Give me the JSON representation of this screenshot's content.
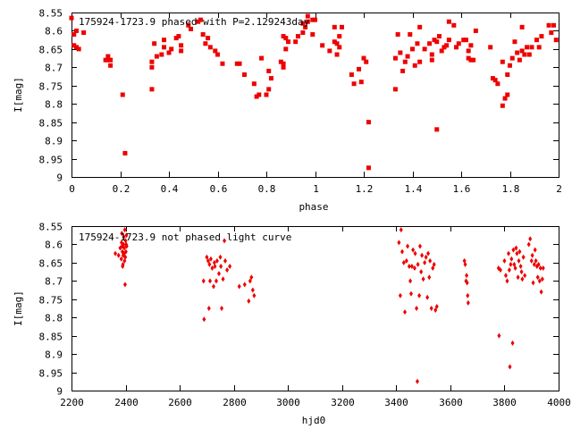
{
  "chart_data": [
    {
      "type": "scatter",
      "title": "175924-1723.9 phased with P=2.129243day",
      "xlabel": "phase",
      "ylabel": "I[mag]",
      "xlim": [
        0,
        2
      ],
      "ylim": [
        8.55,
        9
      ],
      "y_inverted": true,
      "marker_color": "#ee0000",
      "x_ticks": [
        "0",
        "0.2",
        "0.4",
        "0.6",
        "0.8",
        "1",
        "1.2",
        "1.4",
        "1.6",
        "1.8",
        "2"
      ],
      "y_ticks": [
        "8.55",
        "8.6",
        "8.65",
        "8.7",
        "8.75",
        "8.8",
        "8.85",
        "8.9",
        "8.95",
        "9"
      ],
      "points": [
        [
          0.0,
          8.565
        ],
        [
          0.01,
          8.64
        ],
        [
          0.01,
          8.61
        ],
        [
          0.02,
          8.6
        ],
        [
          0.02,
          8.645
        ],
        [
          0.03,
          8.65
        ],
        [
          0.05,
          8.605
        ],
        [
          0.14,
          8.68
        ],
        [
          0.15,
          8.67
        ],
        [
          0.15,
          8.68
        ],
        [
          0.16,
          8.695
        ],
        [
          0.16,
          8.68
        ],
        [
          0.21,
          8.775
        ],
        [
          0.22,
          8.935
        ],
        [
          0.33,
          8.7
        ],
        [
          0.33,
          8.685
        ],
        [
          0.33,
          8.76
        ],
        [
          0.34,
          8.635
        ],
        [
          0.35,
          8.67
        ],
        [
          0.37,
          8.665
        ],
        [
          0.38,
          8.625
        ],
        [
          0.38,
          8.645
        ],
        [
          0.4,
          8.66
        ],
        [
          0.41,
          8.65
        ],
        [
          0.43,
          8.62
        ],
        [
          0.44,
          8.615
        ],
        [
          0.45,
          8.64
        ],
        [
          0.45,
          8.655
        ],
        [
          0.48,
          8.585
        ],
        [
          0.49,
          8.595
        ],
        [
          0.52,
          8.575
        ],
        [
          0.53,
          8.57
        ],
        [
          0.54,
          8.61
        ],
        [
          0.55,
          8.635
        ],
        [
          0.56,
          8.62
        ],
        [
          0.57,
          8.645
        ],
        [
          0.59,
          8.655
        ],
        [
          0.6,
          8.665
        ],
        [
          0.62,
          8.69
        ],
        [
          0.68,
          8.69
        ],
        [
          0.69,
          8.69
        ],
        [
          0.71,
          8.72
        ],
        [
          0.75,
          8.745
        ],
        [
          0.76,
          8.78
        ],
        [
          0.77,
          8.775
        ],
        [
          0.78,
          8.675
        ],
        [
          0.8,
          8.775
        ],
        [
          0.81,
          8.76
        ],
        [
          0.81,
          8.71
        ],
        [
          0.82,
          8.73
        ],
        [
          0.86,
          8.685
        ],
        [
          0.87,
          8.69
        ],
        [
          0.87,
          8.7
        ],
        [
          0.87,
          8.615
        ],
        [
          0.88,
          8.62
        ],
        [
          0.88,
          8.65
        ],
        [
          0.89,
          8.63
        ],
        [
          0.92,
          8.63
        ],
        [
          0.93,
          8.615
        ],
        [
          0.95,
          8.605
        ],
        [
          0.95,
          8.58
        ],
        [
          0.96,
          8.59
        ],
        [
          0.97,
          8.56
        ],
        [
          0.97,
          8.575
        ],
        [
          0.99,
          8.61
        ],
        [
          0.99,
          8.57
        ],
        [
          1.0,
          8.57
        ],
        [
          1.03,
          8.64
        ],
        [
          1.06,
          8.655
        ],
        [
          1.08,
          8.63
        ],
        [
          1.08,
          8.59
        ],
        [
          1.09,
          8.635
        ],
        [
          1.09,
          8.665
        ],
        [
          1.1,
          8.645
        ],
        [
          1.1,
          8.615
        ],
        [
          1.11,
          8.59
        ],
        [
          1.15,
          8.72
        ],
        [
          1.16,
          8.745
        ],
        [
          1.18,
          8.705
        ],
        [
          1.19,
          8.74
        ],
        [
          1.2,
          8.675
        ],
        [
          1.21,
          8.685
        ],
        [
          1.22,
          8.85
        ],
        [
          1.22,
          8.975
        ],
        [
          1.33,
          8.76
        ],
        [
          1.33,
          8.675
        ],
        [
          1.34,
          8.61
        ],
        [
          1.35,
          8.66
        ],
        [
          1.36,
          8.71
        ],
        [
          1.37,
          8.685
        ],
        [
          1.38,
          8.67
        ],
        [
          1.39,
          8.61
        ],
        [
          1.4,
          8.65
        ],
        [
          1.41,
          8.695
        ],
        [
          1.42,
          8.635
        ],
        [
          1.43,
          8.685
        ],
        [
          1.43,
          8.59
        ],
        [
          1.45,
          8.65
        ],
        [
          1.47,
          8.635
        ],
        [
          1.48,
          8.665
        ],
        [
          1.48,
          8.68
        ],
        [
          1.49,
          8.625
        ],
        [
          1.5,
          8.63
        ],
        [
          1.5,
          8.87
        ],
        [
          1.51,
          8.615
        ],
        [
          1.52,
          8.655
        ],
        [
          1.53,
          8.645
        ],
        [
          1.54,
          8.64
        ],
        [
          1.55,
          8.625
        ],
        [
          1.55,
          8.575
        ],
        [
          1.57,
          8.585
        ],
        [
          1.58,
          8.645
        ],
        [
          1.59,
          8.635
        ],
        [
          1.61,
          8.625
        ],
        [
          1.62,
          8.625
        ],
        [
          1.63,
          8.655
        ],
        [
          1.63,
          8.675
        ],
        [
          1.64,
          8.68
        ],
        [
          1.64,
          8.64
        ],
        [
          1.65,
          8.68
        ],
        [
          1.66,
          8.6
        ],
        [
          1.72,
          8.645
        ],
        [
          1.73,
          8.73
        ],
        [
          1.74,
          8.735
        ],
        [
          1.75,
          8.745
        ],
        [
          1.77,
          8.685
        ],
        [
          1.77,
          8.805
        ],
        [
          1.78,
          8.785
        ],
        [
          1.79,
          8.775
        ],
        [
          1.79,
          8.72
        ],
        [
          1.8,
          8.695
        ],
        [
          1.81,
          8.675
        ],
        [
          1.82,
          8.63
        ],
        [
          1.83,
          8.66
        ],
        [
          1.84,
          8.68
        ],
        [
          1.85,
          8.655
        ],
        [
          1.85,
          8.59
        ],
        [
          1.86,
          8.665
        ],
        [
          1.87,
          8.645
        ],
        [
          1.88,
          8.665
        ],
        [
          1.89,
          8.645
        ],
        [
          1.91,
          8.625
        ],
        [
          1.92,
          8.645
        ],
        [
          1.93,
          8.615
        ],
        [
          1.96,
          8.585
        ],
        [
          1.97,
          8.605
        ],
        [
          1.98,
          8.585
        ],
        [
          1.99,
          8.625
        ]
      ]
    },
    {
      "type": "scatter",
      "title": "175924-1723.9 not phased light curve",
      "xlabel": "hjd0",
      "ylabel": "I[mag]",
      "xlim": [
        2200,
        4000
      ],
      "ylim": [
        8.55,
        9
      ],
      "y_inverted": true,
      "marker_color": "#ee0000",
      "x_ticks": [
        "2200",
        "2400",
        "2600",
        "2800",
        "3000",
        "3200",
        "3400",
        "3600",
        "3800",
        "4000"
      ],
      "y_ticks": [
        "8.55",
        "8.6",
        "8.65",
        "8.7",
        "8.75",
        "8.8",
        "8.85",
        "8.9",
        "8.95",
        "9"
      ],
      "points": [
        [
          2362,
          8.625
        ],
        [
          2374,
          8.63
        ],
        [
          2380,
          8.61
        ],
        [
          2384,
          8.64
        ],
        [
          2385,
          8.595
        ],
        [
          2386,
          8.57
        ],
        [
          2387,
          8.605
        ],
        [
          2388,
          8.62
        ],
        [
          2389,
          8.66
        ],
        [
          2390,
          8.655
        ],
        [
          2391,
          8.63
        ],
        [
          2392,
          8.6
        ],
        [
          2393,
          8.58
        ],
        [
          2394,
          8.625
        ],
        [
          2395,
          8.61
        ],
        [
          2396,
          8.645
        ],
        [
          2397,
          8.56
        ],
        [
          2398,
          8.71
        ],
        [
          2399,
          8.635
        ],
        [
          2400,
          8.59
        ],
        [
          2401,
          8.62
        ],
        [
          2402,
          8.6
        ],
        [
          2403,
          8.575
        ],
        [
          2404,
          8.605
        ],
        [
          2688,
          8.7
        ],
        [
          2690,
          8.805
        ],
        [
          2700,
          8.635
        ],
        [
          2705,
          8.645
        ],
        [
          2708,
          8.775
        ],
        [
          2710,
          8.655
        ],
        [
          2712,
          8.7
        ],
        [
          2715,
          8.64
        ],
        [
          2720,
          8.665
        ],
        [
          2725,
          8.715
        ],
        [
          2728,
          8.65
        ],
        [
          2730,
          8.66
        ],
        [
          2735,
          8.7
        ],
        [
          2738,
          8.645
        ],
        [
          2745,
          8.68
        ],
        [
          2750,
          8.635
        ],
        [
          2752,
          8.66
        ],
        [
          2755,
          8.775
        ],
        [
          2760,
          8.695
        ],
        [
          2765,
          8.59
        ],
        [
          2768,
          8.645
        ],
        [
          2775,
          8.67
        ],
        [
          2785,
          8.66
        ],
        [
          2820,
          8.715
        ],
        [
          2840,
          8.71
        ],
        [
          2855,
          8.755
        ],
        [
          2860,
          8.7
        ],
        [
          2865,
          8.69
        ],
        [
          2870,
          8.725
        ],
        [
          2875,
          8.74
        ],
        [
          3410,
          8.595
        ],
        [
          3415,
          8.74
        ],
        [
          3418,
          8.56
        ],
        [
          3422,
          8.62
        ],
        [
          3428,
          8.65
        ],
        [
          3432,
          8.785
        ],
        [
          3438,
          8.645
        ],
        [
          3442,
          8.605
        ],
        [
          3448,
          8.66
        ],
        [
          3452,
          8.7
        ],
        [
          3455,
          8.735
        ],
        [
          3458,
          8.66
        ],
        [
          3462,
          8.615
        ],
        [
          3468,
          8.665
        ],
        [
          3470,
          8.625
        ],
        [
          3475,
          8.775
        ],
        [
          3478,
          8.975
        ],
        [
          3480,
          8.655
        ],
        [
          3485,
          8.74
        ],
        [
          3488,
          8.605
        ],
        [
          3492,
          8.675
        ],
        [
          3495,
          8.63
        ],
        [
          3500,
          8.695
        ],
        [
          3505,
          8.65
        ],
        [
          3510,
          8.635
        ],
        [
          3515,
          8.745
        ],
        [
          3518,
          8.625
        ],
        [
          3522,
          8.69
        ],
        [
          3525,
          8.645
        ],
        [
          3530,
          8.775
        ],
        [
          3535,
          8.665
        ],
        [
          3540,
          8.655
        ],
        [
          3545,
          8.78
        ],
        [
          3550,
          8.77
        ],
        [
          3652,
          8.645
        ],
        [
          3655,
          8.655
        ],
        [
          3658,
          8.7
        ],
        [
          3660,
          8.685
        ],
        [
          3662,
          8.705
        ],
        [
          3664,
          8.74
        ],
        [
          3666,
          8.76
        ],
        [
          3778,
          8.665
        ],
        [
          3780,
          8.85
        ],
        [
          3785,
          8.67
        ],
        [
          3800,
          8.645
        ],
        [
          3805,
          8.685
        ],
        [
          3810,
          8.7
        ],
        [
          3815,
          8.625
        ],
        [
          3818,
          8.67
        ],
        [
          3820,
          8.935
        ],
        [
          3823,
          8.655
        ],
        [
          3826,
          8.64
        ],
        [
          3830,
          8.87
        ],
        [
          3833,
          8.615
        ],
        [
          3836,
          8.655
        ],
        [
          3840,
          8.665
        ],
        [
          3843,
          8.61
        ],
        [
          3846,
          8.625
        ],
        [
          3850,
          8.69
        ],
        [
          3853,
          8.645
        ],
        [
          3856,
          8.62
        ],
        [
          3860,
          8.66
        ],
        [
          3863,
          8.675
        ],
        [
          3866,
          8.695
        ],
        [
          3870,
          8.635
        ],
        [
          3875,
          8.685
        ],
        [
          3890,
          8.6
        ],
        [
          3895,
          8.585
        ],
        [
          3900,
          8.645
        ],
        [
          3903,
          8.63
        ],
        [
          3906,
          8.705
        ],
        [
          3910,
          8.655
        ],
        [
          3913,
          8.615
        ],
        [
          3916,
          8.645
        ],
        [
          3920,
          8.66
        ],
        [
          3923,
          8.69
        ],
        [
          3926,
          8.655
        ],
        [
          3930,
          8.7
        ],
        [
          3933,
          8.665
        ],
        [
          3936,
          8.73
        ],
        [
          3940,
          8.695
        ],
        [
          3943,
          8.665
        ]
      ]
    }
  ]
}
